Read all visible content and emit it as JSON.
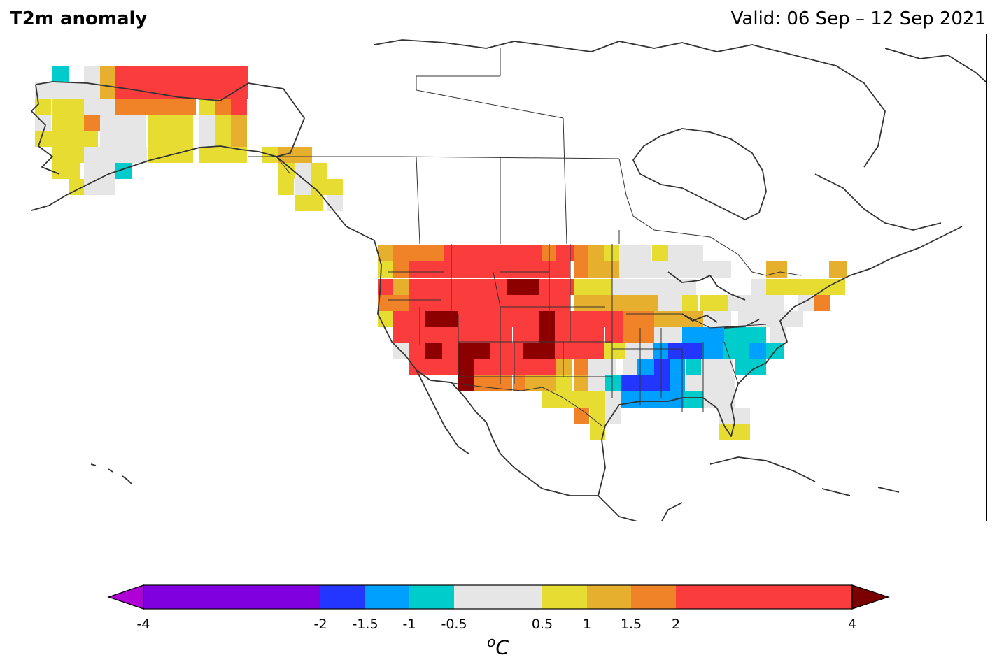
{
  "title": "T2m anomaly",
  "valid": "Valid: 06 Sep – 12 Sep 2021",
  "colorbar": {
    "unit_prefix": "o",
    "unit": "C",
    "ticks": [
      "-4",
      "-2",
      "-1.5",
      "-1",
      "-0.5",
      "0.5",
      "1",
      "1.5",
      "2",
      "4"
    ],
    "extend": "both",
    "under_color": "#b000d8",
    "over_color": "#7a0000",
    "segments": [
      {
        "from": -4,
        "to": -2,
        "color": "#8000e0"
      },
      {
        "from": -2,
        "to": -1.5,
        "color": "#2236ff"
      },
      {
        "from": -1.5,
        "to": -1,
        "color": "#00a0ff"
      },
      {
        "from": -1,
        "to": -0.5,
        "color": "#00cccc"
      },
      {
        "from": -0.5,
        "to": 0.5,
        "color": "#e6e6e6"
      },
      {
        "from": 0.5,
        "to": 1,
        "color": "#e6dc32"
      },
      {
        "from": 1,
        "to": 1.5,
        "color": "#e6af2d"
      },
      {
        "from": 1.5,
        "to": 2,
        "color": "#f08228"
      },
      {
        "from": 2,
        "to": 4,
        "color": "#fa3c3c"
      }
    ]
  },
  "map": {
    "land_color": "#ffffff",
    "coast_color": "#333333",
    "region": "North America",
    "anomaly_classes": {
      "dark_red": "#8c0000",
      "red": "#fa3c3c",
      "orange": "#f08228",
      "gold": "#e6af2d",
      "yellow": "#e6dc32",
      "grey": "#e6e6e6",
      "cyan": "#00cccc",
      "sky": "#00a0ff",
      "blue": "#2236ff"
    }
  }
}
